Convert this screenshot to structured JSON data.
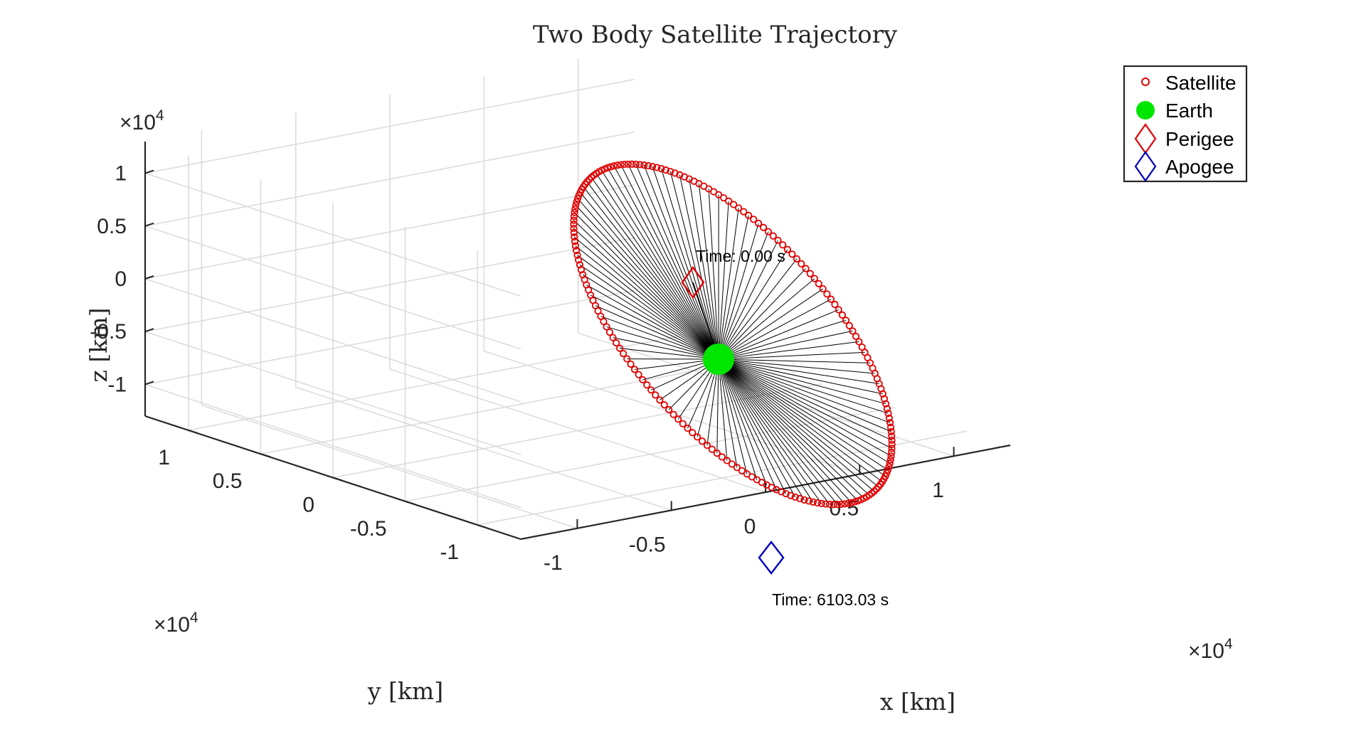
{
  "chart_data": {
    "type": "scatter",
    "title": "Two Body Satellite Trajectory",
    "xlabel": "x [km]",
    "ylabel": "y [km]",
    "zlabel": "z [km]",
    "xlim": [
      -1.3,
      1.3
    ],
    "ylim": [
      -1.3,
      1.3
    ],
    "zlim": [
      -1.3,
      1.3
    ],
    "axis_multiplier": {
      "x": "×10",
      "y": "×10",
      "z": "×10",
      "power": "4"
    },
    "x_ticks": [
      -1,
      -0.5,
      0,
      0.5,
      1
    ],
    "x_tick_labels": [
      "-1",
      "-0.5",
      "0",
      "0.5",
      "1"
    ],
    "y_ticks": [
      -1,
      -0.5,
      0,
      0.5,
      1
    ],
    "y_tick_labels": [
      "-1",
      "-0.5",
      "0",
      "0.5",
      "1"
    ],
    "z_ticks": [
      -1,
      -0.5,
      0,
      0.5,
      1
    ],
    "z_tick_labels": [
      "-1",
      "-0.5",
      "0",
      "0.5",
      "1"
    ],
    "grid": true,
    "legend_position": "top-right",
    "legend": [
      "Satellite",
      "Earth",
      "Perigee",
      "Apogee"
    ],
    "series": [
      {
        "name": "Satellite",
        "marker": "circle",
        "color": "#e00000",
        "points": 200,
        "orbit": {
          "note": "elliptical orbit sampled at 200 points"
        }
      },
      {
        "name": "Earth",
        "marker": "filled-circle",
        "color": "#00e600",
        "x": 0,
        "y": 0,
        "z": 0
      },
      {
        "name": "Perigee",
        "marker": "diamond",
        "color": "#e00000",
        "time_label": "Time: 0.00 s"
      },
      {
        "name": "Apogee",
        "marker": "diamond",
        "color": "#0000c0",
        "time_label": "Time: 6103.03 s"
      }
    ],
    "colors": {
      "satellite": "#e00000",
      "earth": "#00e600",
      "perigee": "#e00000",
      "apogee": "#0000c0",
      "radial_lines": "#000000",
      "grid": "#dcdcdc",
      "axes": "#262626"
    }
  }
}
